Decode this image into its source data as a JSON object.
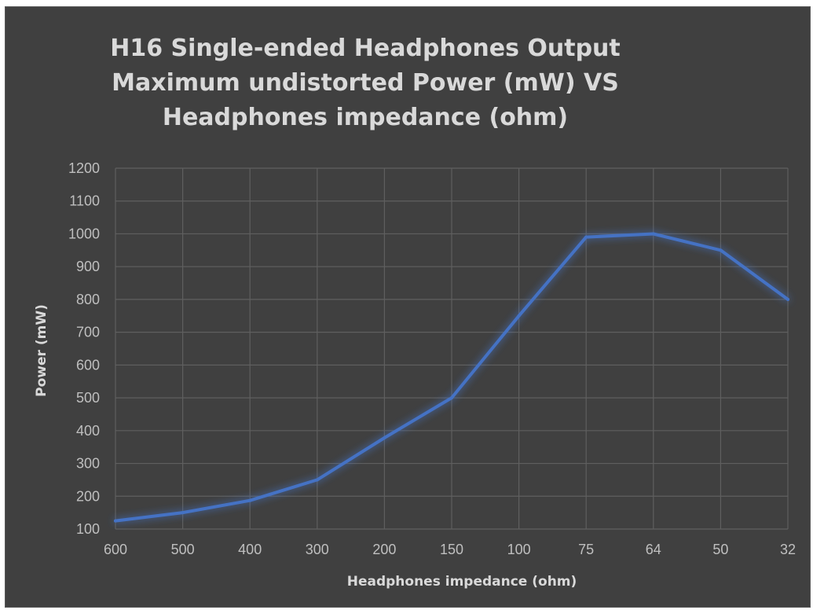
{
  "chart_data": {
    "type": "line",
    "title_lines": [
      "H16 Single-ended Headphones Output",
      "Maximum undistorted Power (mW) VS",
      "Headphones impedance (ohm)"
    ],
    "xlabel": "Headphones impedance (ohm)",
    "ylabel": "Power (mW)",
    "categories": [
      "600",
      "500",
      "400",
      "300",
      "200",
      "150",
      "100",
      "75",
      "64",
      "50",
      "32"
    ],
    "series": [
      {
        "values": [
          125,
          150,
          187,
          250,
          378,
          500,
          750,
          990,
          1000,
          950,
          800
        ]
      }
    ],
    "ylim": [
      100,
      1200
    ],
    "ytick_step": 100,
    "grid": true,
    "legend": "none",
    "colors": {
      "background": "#404040",
      "grid": "#5f5f5f",
      "line": "#4472c4",
      "text": "#d9d9d9",
      "tick_text": "#bfbfbf"
    }
  }
}
